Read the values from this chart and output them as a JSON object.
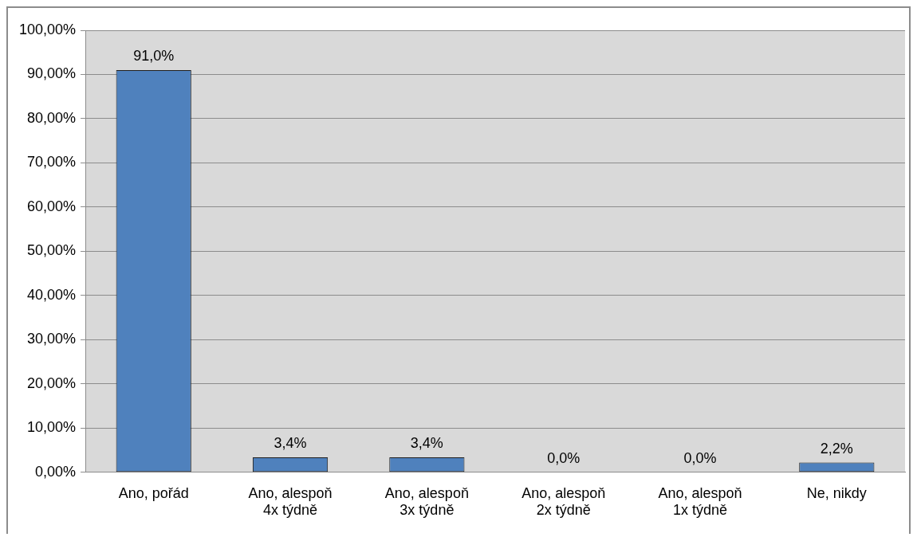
{
  "chart_data": {
    "type": "bar",
    "categories": [
      "Ano, pořád",
      "Ano, alespoň 4x týdně",
      "Ano, alespoň 3x týdně",
      "Ano, alespoň 2x týdně",
      "Ano, alespoň 1x týdně",
      "Ne, nikdy"
    ],
    "values": [
      91.0,
      3.4,
      3.4,
      0.0,
      0.0,
      2.2
    ],
    "value_labels": [
      "91,0%",
      "3,4%",
      "3,4%",
      "0,0%",
      "0,0%",
      "2,2%"
    ],
    "color": "#4f81bd",
    "ylim": [
      0,
      100
    ],
    "yticks": [
      {
        "value": 0,
        "label": "0,00%"
      },
      {
        "value": 10,
        "label": "10,00%"
      },
      {
        "value": 20,
        "label": "20,00%"
      },
      {
        "value": 30,
        "label": "30,00%"
      },
      {
        "value": 40,
        "label": "40,00%"
      },
      {
        "value": 50,
        "label": "50,00%"
      },
      {
        "value": 60,
        "label": "60,00%"
      },
      {
        "value": 70,
        "label": "70,00%"
      },
      {
        "value": 80,
        "label": "80,00%"
      },
      {
        "value": 90,
        "label": "90,00%"
      },
      {
        "value": 100,
        "label": "100,00%"
      }
    ],
    "grid": "y",
    "legend": false
  }
}
